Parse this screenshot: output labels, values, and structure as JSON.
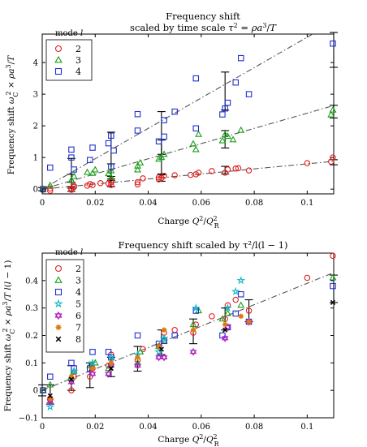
{
  "chart_data": [
    {
      "type": "scatter",
      "title": "Frequency shift",
      "subtitle": "scaled by time scale τ² = ρa³/T",
      "xlabel": "Charge Q²/Q_R²",
      "ylabel": "Frequency shift ω_C² × ρa³/T",
      "xlim": [
        0,
        0.11
      ],
      "ylim": [
        -0.15,
        4.9
      ],
      "xticks": [
        0,
        0.02,
        0.04,
        0.06,
        0.08,
        0.1
      ],
      "xtick_labels": [
        "0",
        "0.02",
        "0.04",
        "0.06",
        "0.08",
        "0.1"
      ],
      "yticks": [
        0,
        1,
        2,
        3,
        4
      ],
      "ytick_labels": [
        "0",
        "1",
        "2",
        "3",
        "4"
      ],
      "grid": false,
      "legend": {
        "title": "mode l",
        "placement": "top-left"
      },
      "series": [
        {
          "name": "2",
          "marker": "circle",
          "color": "#e02020",
          "x": [
            0.0,
            0.0,
            0.003,
            0.003,
            0.011,
            0.011,
            0.012,
            0.012,
            0.017,
            0.018,
            0.019,
            0.022,
            0.025,
            0.026,
            0.026,
            0.026,
            0.036,
            0.036,
            0.038,
            0.044,
            0.044,
            0.045,
            0.046,
            0.05,
            0.056,
            0.058,
            0.059,
            0.064,
            0.069,
            0.07,
            0.073,
            0.074,
            0.078,
            0.1,
            0.109,
            0.11
          ],
          "y": [
            0.0,
            -0.02,
            -0.05,
            0.02,
            -0.02,
            0.02,
            0.07,
            0.1,
            0.11,
            0.16,
            0.13,
            0.19,
            0.18,
            0.22,
            0.27,
            0.13,
            0.15,
            0.22,
            0.34,
            0.31,
            0.37,
            0.35,
            0.42,
            0.44,
            0.45,
            0.47,
            0.52,
            0.57,
            0.52,
            0.62,
            0.65,
            0.66,
            0.59,
            0.82,
            0.87,
            1.0
          ]
        },
        {
          "name": "3",
          "marker": "triangle",
          "color": "#18a018",
          "x": [
            0.0,
            0.003,
            0.011,
            0.012,
            0.017,
            0.019,
            0.02,
            0.025,
            0.026,
            0.026,
            0.036,
            0.036,
            0.037,
            0.044,
            0.045,
            0.046,
            0.057,
            0.058,
            0.059,
            0.068,
            0.069,
            0.07,
            0.072,
            0.075,
            0.109,
            0.11
          ],
          "y": [
            0.0,
            0.12,
            0.28,
            0.4,
            0.53,
            0.5,
            0.61,
            0.49,
            0.58,
            0.37,
            0.61,
            0.73,
            0.83,
            0.95,
            1.0,
            1.1,
            1.43,
            1.25,
            1.73,
            1.53,
            1.72,
            1.67,
            1.56,
            1.86,
            2.35,
            2.5
          ]
        },
        {
          "name": "4",
          "marker": "square",
          "color": "#1f2fcf",
          "x": [
            0.0,
            0.003,
            0.011,
            0.011,
            0.012,
            0.018,
            0.019,
            0.025,
            0.026,
            0.026,
            0.027,
            0.036,
            0.036,
            0.044,
            0.046,
            0.046,
            0.05,
            0.058,
            0.058,
            0.068,
            0.069,
            0.07,
            0.073,
            0.075,
            0.078,
            0.11
          ],
          "y": [
            0.0,
            0.68,
            1.0,
            1.25,
            0.62,
            0.92,
            1.31,
            1.45,
            1.69,
            0.71,
            1.22,
            2.37,
            1.85,
            1.51,
            1.66,
            2.18,
            2.45,
            3.5,
            1.92,
            2.36,
            2.55,
            2.73,
            3.37,
            4.14,
            3.0,
            4.6
          ]
        }
      ],
      "fit_lines": [
        {
          "series": "2",
          "slope": 8.0,
          "intercept": 0.0
        },
        {
          "series": "3",
          "slope": 24.0,
          "intercept": 0.0
        },
        {
          "series": "4",
          "slope": 48.0,
          "intercept": 0.0
        }
      ],
      "error_bars": [
        {
          "x": 0.0,
          "y": 0.0,
          "low": -0.05,
          "high": 0.05
        },
        {
          "x": 0.011,
          "y": 0.0,
          "low": -0.07,
          "high": 0.08
        },
        {
          "x": 0.011,
          "y": 0.23,
          "low": 0.03,
          "high": 0.47
        },
        {
          "x": 0.011,
          "y": 0.57,
          "low": 0.22,
          "high": 0.97
        },
        {
          "x": 0.026,
          "y": 0.2,
          "low": 0.08,
          "high": 0.32
        },
        {
          "x": 0.026,
          "y": 0.55,
          "low": 0.27,
          "high": 0.8
        },
        {
          "x": 0.026,
          "y": 1.1,
          "low": 0.4,
          "high": 1.8
        },
        {
          "x": 0.045,
          "y": 0.37,
          "low": 0.25,
          "high": 0.48
        },
        {
          "x": 0.045,
          "y": 1.0,
          "low": 0.45,
          "high": 1.55
        },
        {
          "x": 0.045,
          "y": 1.75,
          "low": 1.1,
          "high": 2.45
        },
        {
          "x": 0.069,
          "y": 0.6,
          "low": 0.48,
          "high": 0.72
        },
        {
          "x": 0.069,
          "y": 1.6,
          "low": 1.3,
          "high": 1.85
        },
        {
          "x": 0.069,
          "y": 3.1,
          "low": 2.5,
          "high": 3.7
        },
        {
          "x": 0.11,
          "y": 0.85,
          "low": 0.77,
          "high": 0.93
        },
        {
          "x": 0.11,
          "y": 2.45,
          "low": 2.25,
          "high": 2.65
        },
        {
          "x": 0.11,
          "y": 4.2,
          "low": 3.85,
          "high": 4.95
        }
      ]
    },
    {
      "type": "scatter",
      "title": "Frequency shift scaled by τ²/l(l − 1)",
      "xlabel": "Charge Q²/Q_R²",
      "ylabel": "Frequency shift ω_C² × ρa³/T l(l − 1)",
      "xlim": [
        0,
        0.11
      ],
      "ylim": [
        -0.1,
        0.5
      ],
      "xticks": [
        0,
        0.02,
        0.04,
        0.06,
        0.08,
        0.1
      ],
      "xtick_labels": [
        "0",
        "0.02",
        "0.04",
        "0.06",
        "0.08",
        "0.1"
      ],
      "yticks": [
        -0.1,
        0,
        0.1,
        0.2,
        0.3,
        0.4
      ],
      "ytick_labels": [
        "−0.1",
        "0",
        "0.1",
        "0.2",
        "0.3",
        "0.4"
      ],
      "grid": false,
      "legend": {
        "title": "mode l",
        "placement": "top-left"
      },
      "series": [
        {
          "name": "2",
          "marker": "circle",
          "color": "#e02020",
          "x": [
            0.0,
            0.003,
            0.011,
            0.012,
            0.018,
            0.019,
            0.025,
            0.026,
            0.036,
            0.038,
            0.044,
            0.046,
            0.05,
            0.057,
            0.058,
            0.064,
            0.069,
            0.07,
            0.073,
            0.078,
            0.1,
            0.11
          ],
          "y": [
            0.0,
            -0.03,
            0.0,
            0.05,
            0.05,
            0.08,
            0.09,
            0.13,
            0.11,
            0.15,
            0.16,
            0.21,
            0.22,
            0.21,
            0.24,
            0.27,
            0.26,
            0.31,
            0.33,
            0.29,
            0.41,
            0.49
          ]
        },
        {
          "name": "3",
          "marker": "triangle",
          "color": "#18a018",
          "x": [
            0.0,
            0.003,
            0.011,
            0.012,
            0.018,
            0.02,
            0.025,
            0.026,
            0.036,
            0.037,
            0.044,
            0.046,
            0.057,
            0.059,
            0.068,
            0.07,
            0.075,
            0.11
          ],
          "y": [
            0.0,
            0.02,
            0.05,
            0.07,
            0.09,
            0.1,
            0.08,
            0.1,
            0.1,
            0.14,
            0.16,
            0.18,
            0.24,
            0.29,
            0.26,
            0.28,
            0.31,
            0.41
          ]
        },
        {
          "name": "4",
          "marker": "square",
          "color": "#1f2fcf",
          "x": [
            0.0,
            0.003,
            0.011,
            0.012,
            0.018,
            0.019,
            0.025,
            0.026,
            0.036,
            0.044,
            0.046,
            0.05,
            0.058,
            0.068,
            0.07,
            0.073,
            0.075,
            0.078,
            0.11
          ],
          "y": [
            0.0,
            0.05,
            0.1,
            0.08,
            0.08,
            0.14,
            0.14,
            0.12,
            0.2,
            0.17,
            0.18,
            0.2,
            0.29,
            0.2,
            0.23,
            0.28,
            0.35,
            0.25,
            0.38
          ]
        },
        {
          "name": "5",
          "marker": "star",
          "color": "#17b8c8",
          "x": [
            0.003,
            0.012,
            0.019,
            0.026,
            0.036,
            0.044,
            0.046,
            0.058,
            0.07,
            0.073,
            0.075
          ],
          "y": [
            -0.06,
            0.07,
            0.1,
            0.12,
            0.13,
            0.14,
            0.19,
            0.3,
            0.3,
            0.36,
            0.4
          ]
        },
        {
          "name": "6",
          "marker": "hexstar",
          "color": "#b020c0",
          "x": [
            0.003,
            0.011,
            0.019,
            0.025,
            0.026,
            0.036,
            0.044,
            0.046,
            0.057,
            0.069,
            0.07,
            0.078
          ],
          "y": [
            -0.04,
            0.03,
            0.06,
            0.06,
            0.09,
            0.09,
            0.12,
            0.12,
            0.14,
            0.19,
            0.23,
            0.25
          ]
        },
        {
          "name": "7",
          "marker": "asterisk",
          "color": "#e07a10",
          "x": [
            0.003,
            0.011,
            0.019,
            0.026,
            0.036,
            0.044,
            0.046,
            0.057,
            0.069,
            0.075,
            0.078
          ],
          "y": [
            -0.03,
            0.05,
            0.08,
            0.1,
            0.12,
            0.16,
            0.22,
            0.22,
            0.24,
            0.27,
            0.25
          ]
        },
        {
          "name": "8",
          "marker": "x",
          "color": "#000000",
          "x": [
            0.003,
            0.011,
            0.026,
            0.045,
            0.069,
            0.11
          ],
          "y": [
            -0.02,
            0.04,
            0.08,
            0.15,
            0.22,
            0.32
          ]
        }
      ],
      "fit_lines": [
        {
          "series": "all",
          "slope": 3.9,
          "intercept": 0.0
        }
      ],
      "error_bars": [
        {
          "x": 0.0,
          "y": 0.0,
          "low": -0.02,
          "high": 0.02
        },
        {
          "x": 0.003,
          "y": -0.02,
          "low": -0.05,
          "high": 0.02
        },
        {
          "x": 0.011,
          "y": 0.04,
          "low": 0.0,
          "high": 0.09
        },
        {
          "x": 0.018,
          "y": 0.05,
          "low": 0.01,
          "high": 0.1
        },
        {
          "x": 0.026,
          "y": 0.08,
          "low": 0.05,
          "high": 0.12
        },
        {
          "x": 0.036,
          "y": 0.11,
          "low": 0.07,
          "high": 0.16
        },
        {
          "x": 0.045,
          "y": 0.17,
          "low": 0.13,
          "high": 0.22
        },
        {
          "x": 0.057,
          "y": 0.21,
          "low": 0.17,
          "high": 0.26
        },
        {
          "x": 0.069,
          "y": 0.26,
          "low": 0.22,
          "high": 0.3
        },
        {
          "x": 0.078,
          "y": 0.29,
          "low": 0.25,
          "high": 0.33
        },
        {
          "x": 0.11,
          "y": 0.38,
          "low": 0.32,
          "high": 0.42
        }
      ]
    }
  ]
}
